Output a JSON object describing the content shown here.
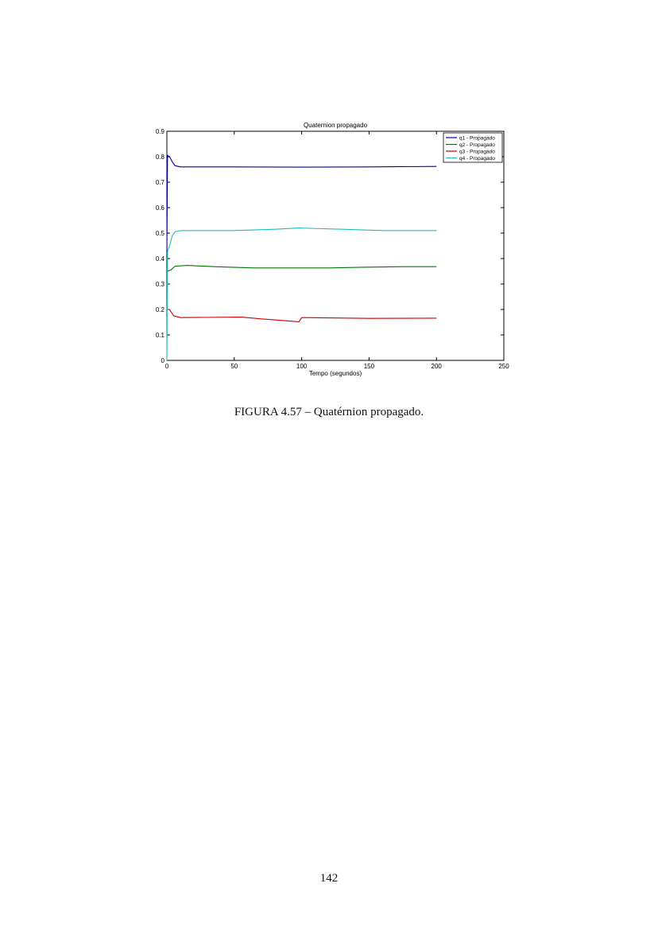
{
  "chart_data": {
    "type": "line",
    "title": "Quaternion propagado",
    "xlabel": "Tempo (segundos)",
    "ylabel": "",
    "xlim": [
      0,
      250
    ],
    "ylim": [
      0,
      0.9
    ],
    "xticks": [
      0,
      50,
      100,
      150,
      200,
      250
    ],
    "yticks": [
      0,
      0.1,
      0.2,
      0.3,
      0.4,
      0.5,
      0.6,
      0.7,
      0.8,
      0.9
    ],
    "xtick_labels": [
      "0",
      "50",
      "100",
      "150",
      "200",
      "250"
    ],
    "ytick_labels": [
      "0",
      "0.1",
      "0.2",
      "0.3",
      "0.4",
      "0.5",
      "0.6",
      "0.7",
      "0.8",
      "0.9"
    ],
    "grid": false,
    "legend_position": "top-right",
    "series": [
      {
        "name": "q1 - Propagado",
        "color": "#0000aa",
        "points": [
          [
            0,
            0.43
          ],
          [
            0.5,
            0.805
          ],
          [
            2,
            0.8
          ],
          [
            4,
            0.78
          ],
          [
            6,
            0.765
          ],
          [
            10,
            0.76
          ],
          [
            50,
            0.76
          ],
          [
            100,
            0.759
          ],
          [
            150,
            0.76
          ],
          [
            200,
            0.762
          ]
        ]
      },
      {
        "name": "q2 - Propagado",
        "color": "#007700",
        "points": [
          [
            0,
            0.35
          ],
          [
            3,
            0.355
          ],
          [
            6,
            0.37
          ],
          [
            15,
            0.373
          ],
          [
            35,
            0.368
          ],
          [
            65,
            0.363
          ],
          [
            120,
            0.363
          ],
          [
            145,
            0.366
          ],
          [
            175,
            0.368
          ],
          [
            200,
            0.368
          ]
        ]
      },
      {
        "name": "q3 - Propagado",
        "color": "#cc0000",
        "points": [
          [
            0,
            0.2
          ],
          [
            2,
            0.2
          ],
          [
            5,
            0.175
          ],
          [
            10,
            0.168
          ],
          [
            55,
            0.17
          ],
          [
            70,
            0.163
          ],
          [
            90,
            0.155
          ],
          [
            98,
            0.152
          ],
          [
            100,
            0.168
          ],
          [
            150,
            0.165
          ],
          [
            200,
            0.166
          ]
        ]
      },
      {
        "name": "q4 - Propagado",
        "color": "#22bbbb",
        "points": [
          [
            0,
            0
          ],
          [
            0.5,
            0.43
          ],
          [
            2,
            0.45
          ],
          [
            4,
            0.49
          ],
          [
            6,
            0.505
          ],
          [
            10,
            0.51
          ],
          [
            50,
            0.51
          ],
          [
            80,
            0.515
          ],
          [
            98,
            0.52
          ],
          [
            130,
            0.515
          ],
          [
            160,
            0.51
          ],
          [
            200,
            0.51
          ]
        ]
      }
    ]
  },
  "caption": "FIGURA 4.57 – Quatérnion propagado.",
  "page_number": "142"
}
